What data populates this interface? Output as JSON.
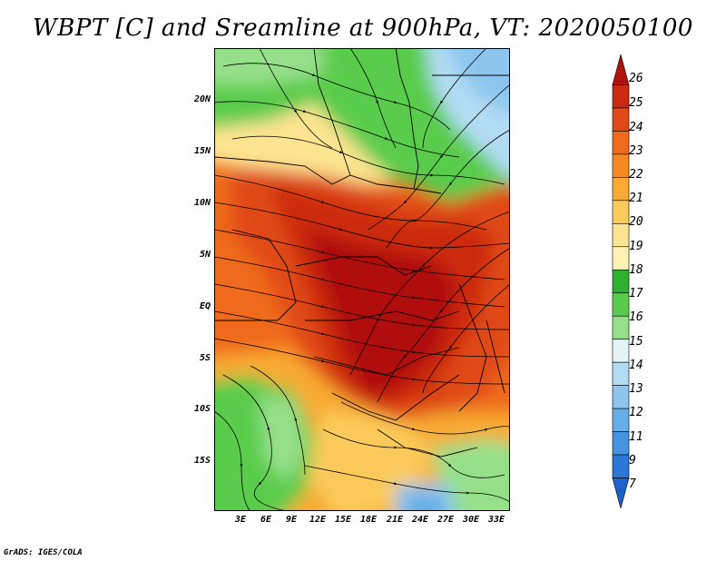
{
  "title": "WBPT [C] and Sreamline at 900hPa, VT: 2020050100",
  "footer": "GrADS: IGES/COLA",
  "map": {
    "region": "Central Africa",
    "lat_labels": [
      "20N",
      "15N",
      "10N",
      "5N",
      "EQ",
      "5S",
      "10S",
      "15S"
    ],
    "lon_labels": [
      "3E",
      "6E",
      "9E",
      "12E",
      "15E",
      "18E",
      "21E",
      "24E",
      "27E",
      "30E",
      "33E"
    ]
  },
  "colorbar": {
    "levels": [
      "26",
      "25",
      "24",
      "23",
      "22",
      "21",
      "20",
      "19",
      "18",
      "17",
      "16",
      "15",
      "14",
      "13",
      "12",
      "11",
      "9",
      "7"
    ],
    "colors": [
      "#b0110b",
      "#cc2a10",
      "#e04818",
      "#ef6a1c",
      "#f48a20",
      "#f8aa32",
      "#fbca5a",
      "#fde490",
      "#faf3b4",
      "#30b030",
      "#5acc4c",
      "#96e08a",
      "#e4f4f4",
      "#b2dcf4",
      "#8cc6ee",
      "#66aee8",
      "#4494e2",
      "#2c78d8",
      "#1c60cc"
    ]
  }
}
